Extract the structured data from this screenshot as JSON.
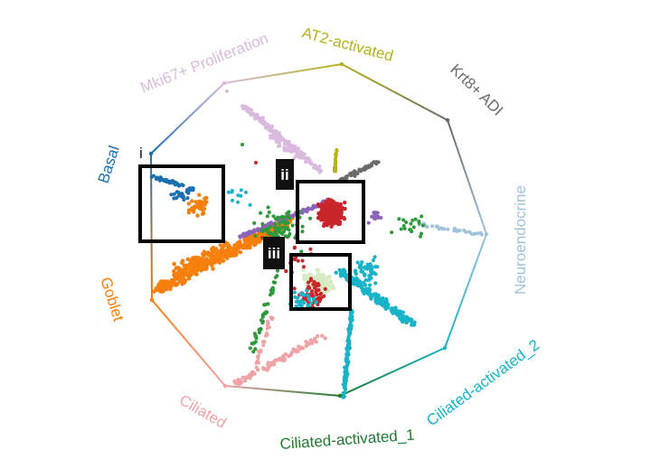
{
  "vertices": [
    {
      "label": "AT2-activated",
      "color": "#b5b21b"
    },
    {
      "label": "Krt8+ ADI",
      "color": "#6b6b6b"
    },
    {
      "label": "Neuroendocrine",
      "color": "#9fc3da"
    },
    {
      "label": "Ciliated-activated_2",
      "color": "#17b3c7"
    },
    {
      "label": "Ciliated-activated_1",
      "color": "#1f7a2e"
    },
    {
      "label": "Ciliated",
      "color": "#f0a3a6"
    },
    {
      "label": "Goblet",
      "color": "#f77f0c"
    },
    {
      "label": "Basal",
      "color": "#1a6faf"
    },
    {
      "label": "Mki67+ Proliferation",
      "color": "#d9b9de"
    }
  ],
  "extra_colors": {
    "red": "#c8262b",
    "purple": "#8a64b8",
    "green": "#2e9a3b",
    "lightgreen": "#d7ebc2"
  },
  "regions": [
    {
      "tag": "i",
      "style": "plain"
    },
    {
      "tag": "ii",
      "style": "filled"
    },
    {
      "tag": "iii",
      "style": "filled"
    }
  ]
}
